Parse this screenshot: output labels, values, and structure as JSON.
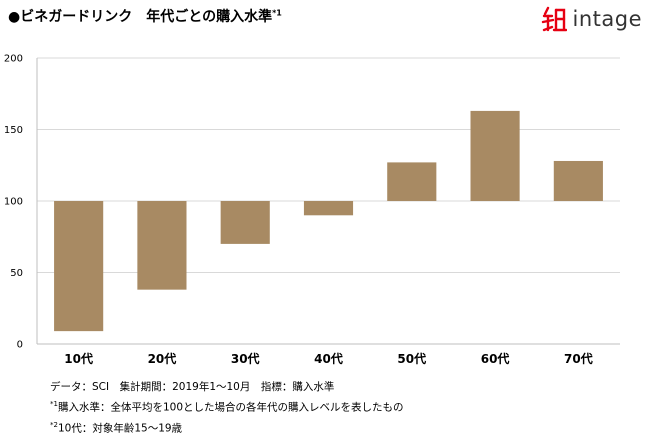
{
  "header": {
    "title": "●ビネガードリンク　年代ごとの購入水準",
    "title_sup": "*1",
    "brand": "intage",
    "brand_color": "#e60012"
  },
  "chart_data": {
    "type": "bar",
    "baseline": 100,
    "categories": [
      "10代",
      "20代",
      "30代",
      "40代",
      "50代",
      "60代",
      "70代"
    ],
    "values": [
      9,
      38,
      70,
      90,
      127,
      163,
      128
    ],
    "ylim": [
      0,
      200
    ],
    "yticks": [
      "0",
      "50",
      "100",
      "150",
      "200"
    ],
    "grid": true,
    "bar_color": "#a88a63",
    "xlabel": "",
    "ylabel": ""
  },
  "notes": {
    "source": "データ：SCI　集計期間：2019年1～10月　指標：購入水準",
    "note1_mark": "*1",
    "note1": "購入水準：全体平均を100とした場合の各年代の購入レベルを表したもの",
    "note2_mark": "*2",
    "note2": "10代：対象年齢15～19歳"
  }
}
